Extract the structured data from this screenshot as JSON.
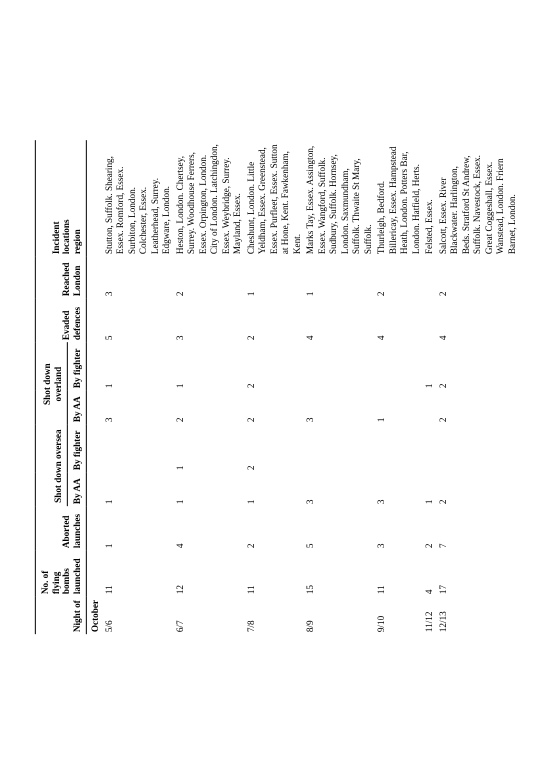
{
  "headers": {
    "night_of": "Night of",
    "num_launched_l1": "No. of",
    "num_launched_l2": "flying bombs",
    "num_launched_l3": "launched",
    "aborted_l1": "Aborted",
    "aborted_l2": "launches",
    "shot_oversea": "Shot down oversea",
    "shot_overland": "Shot down overland",
    "by_aa": "By AA",
    "by_fighter": "By fighter",
    "evaded_l1": "Evaded",
    "evaded_l2": "defences",
    "reached_l1": "Reached",
    "reached_l2": "London",
    "incident_l1": "Incident",
    "incident_l2": "locations",
    "incident_l3": "region"
  },
  "month_label": "October",
  "rows": [
    {
      "night": "5/6",
      "launched": "11",
      "aborted": "1",
      "so_aa": "1",
      "so_ft": "",
      "sl_aa": "3",
      "sl_ft": "1",
      "evaded": "5",
      "reached": "3",
      "locations": "Stutton, Suffolk. Shearing, Essex. Romford, Essex. Surbiton, London. Colchester, Essex. Leatherhead, Surrey. Edgware, London."
    },
    {
      "night": "6/7",
      "launched": "12",
      "aborted": "4",
      "so_aa": "1",
      "so_ft": "1",
      "sl_aa": "2",
      "sl_ft": "1",
      "evaded": "3",
      "reached": "2",
      "locations": "Heston, London. Chertsey, Surrey. Woodhouse Ferrers, Essex. Orpington, London. City of London. Latchingdon, Essex. Weybridge, Surrey. Mayland, Essex."
    },
    {
      "night": "7/8",
      "launched": "11",
      "aborted": "2",
      "so_aa": "1",
      "so_ft": "2",
      "sl_aa": "2",
      "sl_ft": "2",
      "evaded": "2",
      "reached": "1",
      "locations": "Cheshunt, London. Little Yeldham, Essex. Greenstead, Essex. Purfleet, Essex. Sutton at Hone, Kent. Fawkenham, Kent."
    },
    {
      "night": "8/9",
      "launched": "15",
      "aborted": "5",
      "so_aa": "3",
      "so_ft": "",
      "sl_aa": "3",
      "sl_ft": "",
      "evaded": "4",
      "reached": "1",
      "locations": "Marks Tay, Essex. Assington, Essex. Wangford, Suffolk. Sudbury, Suffolk. Hornsey, London. Saxmundham, Suffolk. Thwaite St Mary, Suffolk."
    },
    {
      "night": "9/10",
      "launched": "11",
      "aborted": "3",
      "so_aa": "3",
      "so_ft": "",
      "sl_aa": "1",
      "sl_ft": "",
      "evaded": "4",
      "reached": "2",
      "locations": "Thurleigh, Bedford. Billericay, Essex. Hampstead Heath, London. Potters Bar, London. Hatfield, Herts."
    },
    {
      "night": "11/12",
      "launched": "4",
      "aborted": "2",
      "so_aa": "1",
      "so_ft": "",
      "sl_aa": "",
      "sl_ft": "1",
      "evaded": "",
      "reached": "",
      "locations": "Felsted, Essex."
    },
    {
      "night": "12/13",
      "launched": "17",
      "aborted": "7",
      "so_aa": "2",
      "so_ft": "",
      "sl_aa": "2",
      "sl_ft": "2",
      "evaded": "4",
      "reached": "2",
      "locations": "Salcott, Essex. River Blackwater. Harlington, Beds. Stratford St Andrew, Suffolk. Navestock, Essex. Great Coggeshall, Essex. Wanstead, London. Friern Barnet, London."
    }
  ]
}
